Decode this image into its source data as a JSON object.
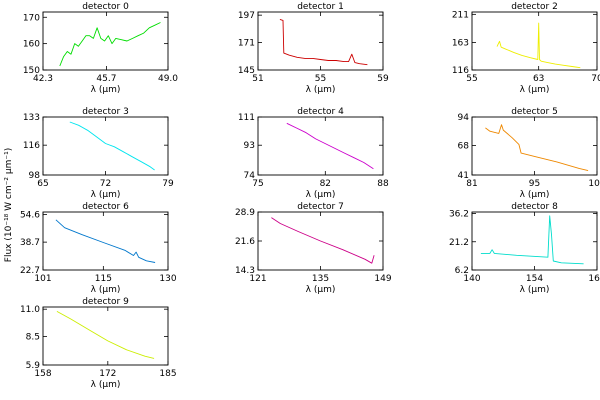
{
  "figure": {
    "ylabel": "Flux (10⁻¹⁸ W cm⁻² μm⁻¹)"
  },
  "chart_data": [
    {
      "type": "line",
      "title": "detector 0",
      "xlabel": "λ (μm)",
      "xlim": [
        42.3,
        49.0
      ],
      "ylim": [
        150,
        172
      ],
      "xticks": [
        {
          "value": 42.3,
          "label": "42.3"
        },
        {
          "value": 45.7,
          "label": "45.7"
        },
        {
          "value": 49.0,
          "label": "49.0"
        }
      ],
      "yticks": [
        {
          "value": 150,
          "label": "150"
        },
        {
          "value": 160,
          "label": "160"
        },
        {
          "value": 170,
          "label": "170"
        }
      ],
      "series": [
        {
          "color": "#00dd00",
          "x": [
            43.2,
            43.4,
            43.6,
            43.8,
            44.0,
            44.2,
            44.4,
            44.6,
            44.8,
            45.0,
            45.2,
            45.4,
            45.6,
            45.8,
            46.0,
            46.2,
            46.5,
            46.8,
            47.1,
            47.4,
            47.7,
            48.0,
            48.3,
            48.6
          ],
          "y": [
            151.5,
            155,
            157,
            156,
            160,
            159,
            161,
            163,
            163,
            162,
            166,
            162,
            161,
            163,
            160,
            162,
            161.5,
            161,
            162,
            163,
            164,
            166,
            167,
            168
          ]
        }
      ]
    },
    {
      "type": "line",
      "title": "detector 1",
      "xlabel": "λ (μm)",
      "xlim": [
        51,
        59
      ],
      "ylim": [
        145,
        200
      ],
      "xticks": [
        {
          "value": 51,
          "label": "51"
        },
        {
          "value": 55,
          "label": "55"
        },
        {
          "value": 59,
          "label": "59"
        }
      ],
      "yticks": [
        {
          "value": 145,
          "label": "145"
        },
        {
          "value": 171,
          "label": "171"
        },
        {
          "value": 197,
          "label": "197"
        }
      ],
      "series": [
        {
          "color": "#cc0000",
          "x": [
            52.4,
            52.6,
            52.65,
            53.0,
            53.5,
            54.0,
            54.5,
            55.0,
            55.5,
            56.0,
            56.5,
            56.8,
            57.0,
            57.2,
            57.5,
            58.0
          ],
          "y": [
            193,
            192,
            161,
            159,
            157,
            156,
            156,
            155,
            154,
            154,
            153,
            153,
            160,
            152,
            151,
            150
          ]
        }
      ]
    },
    {
      "type": "line",
      "title": "detector 2",
      "xlabel": "λ (μm)",
      "xlim": [
        55,
        70
      ],
      "ylim": [
        116,
        215
      ],
      "xticks": [
        {
          "value": 55,
          "label": "55"
        },
        {
          "value": 63,
          "label": "63"
        },
        {
          "value": 70,
          "label": "70"
        }
      ],
      "yticks": [
        {
          "value": 116,
          "label": "116"
        },
        {
          "value": 163,
          "label": "163"
        },
        {
          "value": 211,
          "label": "211"
        }
      ],
      "series": [
        {
          "color": "#eeee00",
          "x": [
            58.0,
            58.3,
            58.5,
            59.0,
            60.0,
            61.0,
            62.0,
            62.9,
            63.0,
            63.1,
            63.3,
            64.0,
            65.0,
            66.0,
            67.0,
            68.0
          ],
          "y": [
            156,
            165,
            155,
            152,
            146,
            141,
            137,
            134,
            196,
            134,
            131,
            129,
            126,
            124,
            122,
            120
          ]
        }
      ]
    },
    {
      "type": "line",
      "title": "detector 3",
      "xlabel": "λ (μm)",
      "xlim": [
        65,
        79
      ],
      "ylim": [
        98,
        133
      ],
      "xticks": [
        {
          "value": 65,
          "label": "65"
        },
        {
          "value": 72,
          "label": "72"
        },
        {
          "value": 79,
          "label": "79"
        }
      ],
      "yticks": [
        {
          "value": 98,
          "label": "98"
        },
        {
          "value": 116,
          "label": "116"
        },
        {
          "value": 133,
          "label": "133"
        }
      ],
      "series": [
        {
          "color": "#00e5ee",
          "x": [
            68.0,
            69.0,
            70.0,
            71.0,
            72.0,
            73.0,
            74.0,
            75.0,
            76.0,
            77.0,
            77.5
          ],
          "y": [
            130,
            128,
            125,
            121,
            117,
            115,
            112,
            109,
            106,
            103,
            101
          ]
        }
      ]
    },
    {
      "type": "line",
      "title": "detector 4",
      "xlabel": "λ (μm)",
      "xlim": [
        75,
        88
      ],
      "ylim": [
        74,
        111
      ],
      "xticks": [
        {
          "value": 75,
          "label": "75"
        },
        {
          "value": 82,
          "label": "82"
        },
        {
          "value": 88,
          "label": "88"
        }
      ],
      "yticks": [
        {
          "value": 74,
          "label": "74"
        },
        {
          "value": 93,
          "label": "93"
        },
        {
          "value": 111,
          "label": "111"
        }
      ],
      "series": [
        {
          "color": "#cc00cc",
          "x": [
            78.0,
            79.0,
            80.0,
            81.0,
            82.0,
            83.0,
            84.0,
            85.0,
            86.0,
            87.0
          ],
          "y": [
            107,
            104,
            101,
            97,
            94,
            91,
            88,
            85,
            82,
            78
          ]
        }
      ]
    },
    {
      "type": "line",
      "title": "detector 5",
      "xlabel": "λ (μm)",
      "xlim": [
        81,
        109
      ],
      "ylim": [
        41,
        94
      ],
      "xticks": [
        {
          "value": 81,
          "label": "81"
        },
        {
          "value": 95,
          "label": "95"
        },
        {
          "value": 109,
          "label": "109"
        }
      ],
      "yticks": [
        {
          "value": 41,
          "label": "41"
        },
        {
          "value": 68,
          "label": "68"
        },
        {
          "value": 94,
          "label": "94"
        }
      ],
      "series": [
        {
          "color": "#ee8800",
          "x": [
            84.0,
            85.0,
            86.0,
            87.0,
            87.6,
            88.0,
            90.0,
            91.5,
            92.0,
            95.0,
            100.0,
            105.0,
            107.0
          ],
          "y": [
            84,
            81,
            80,
            79,
            87,
            82,
            75,
            69,
            61,
            58,
            53,
            47,
            45
          ]
        }
      ]
    },
    {
      "type": "line",
      "title": "detector 6",
      "xlabel": "λ (μm)",
      "xlim": [
        101,
        130
      ],
      "ylim": [
        22.7,
        56
      ],
      "xticks": [
        {
          "value": 101,
          "label": "101"
        },
        {
          "value": 115,
          "label": "115"
        },
        {
          "value": 130,
          "label": "130"
        }
      ],
      "yticks": [
        {
          "value": 22.7,
          "label": "22.7"
        },
        {
          "value": 38.7,
          "label": "38.7"
        },
        {
          "value": 54.6,
          "label": "54.6"
        }
      ],
      "series": [
        {
          "color": "#0077cc",
          "x": [
            104.0,
            106.0,
            110.0,
            115.0,
            120.0,
            122.0,
            122.6,
            123.2,
            125.0,
            127.0
          ],
          "y": [
            51.5,
            47,
            43,
            38.5,
            34,
            31,
            33,
            30,
            28,
            27
          ]
        }
      ]
    },
    {
      "type": "line",
      "title": "detector 7",
      "xlabel": "λ (μm)",
      "xlim": [
        121,
        149
      ],
      "ylim": [
        14.3,
        28.9
      ],
      "xticks": [
        {
          "value": 121,
          "label": "121"
        },
        {
          "value": 135,
          "label": "135"
        },
        {
          "value": 149,
          "label": "149"
        }
      ],
      "yticks": [
        {
          "value": 14.3,
          "label": "14.3"
        },
        {
          "value": 21.6,
          "label": "21.6"
        },
        {
          "value": 28.9,
          "label": "28.9"
        }
      ],
      "series": [
        {
          "color": "#cc0088",
          "x": [
            124.0,
            126.0,
            130.0,
            135.0,
            140.0,
            145.0,
            146.5,
            147.0
          ],
          "y": [
            27.5,
            26,
            24,
            21.6,
            19.4,
            17,
            16,
            18
          ]
        }
      ]
    },
    {
      "type": "line",
      "title": "detector 8",
      "xlabel": "λ (μm)",
      "xlim": [
        140,
        168
      ],
      "ylim": [
        6.2,
        37
      ],
      "xticks": [
        {
          "value": 140,
          "label": "140"
        },
        {
          "value": 154,
          "label": "154"
        },
        {
          "value": 168,
          "label": "168"
        }
      ],
      "yticks": [
        {
          "value": 6.2,
          "label": "6.2"
        },
        {
          "value": 21.2,
          "label": "21.2"
        },
        {
          "value": 36.2,
          "label": "36.2"
        }
      ],
      "series": [
        {
          "color": "#00ddcc",
          "x": [
            142.0,
            144.0,
            144.5,
            145.0,
            150.0,
            157.0,
            157.4,
            157.8,
            158.2,
            160.0,
            165.0
          ],
          "y": [
            15,
            15,
            17,
            15,
            14,
            13,
            35,
            25,
            11,
            10,
            9.5
          ]
        }
      ]
    },
    {
      "type": "line",
      "title": "detector 9",
      "xlabel": "λ (μm)",
      "xlim": [
        158,
        185
      ],
      "ylim": [
        5.9,
        11.2
      ],
      "xticks": [
        {
          "value": 158,
          "label": "158"
        },
        {
          "value": 172,
          "label": "172"
        },
        {
          "value": 185,
          "label": "185"
        }
      ],
      "yticks": [
        {
          "value": 5.9,
          "label": "5.9"
        },
        {
          "value": 8.5,
          "label": "8.5"
        },
        {
          "value": 11.0,
          "label": "11.0"
        }
      ],
      "series": [
        {
          "color": "#ccee00",
          "x": [
            161.0,
            164.0,
            168.0,
            172.0,
            176.0,
            180.0,
            182.0
          ],
          "y": [
            10.8,
            10.1,
            9.1,
            8.1,
            7.3,
            6.7,
            6.5
          ]
        }
      ]
    }
  ]
}
